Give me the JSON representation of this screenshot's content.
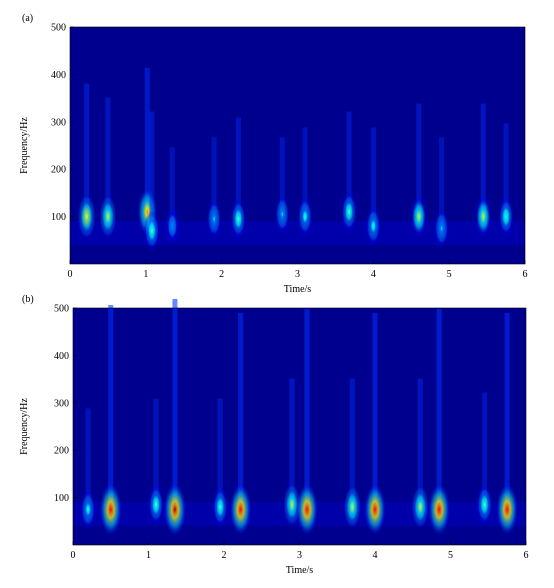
{
  "colors": {
    "background": "#00008f",
    "colormap": [
      "#00008f",
      "#0000ff",
      "#0080ff",
      "#00ffff",
      "#80ff80",
      "#ffff00",
      "#ff8000",
      "#ff0000",
      "#800000"
    ]
  },
  "chart_data": [
    {
      "type": "heatmap",
      "panel_label": "(a)",
      "title": "",
      "xlabel": "Time/s",
      "ylabel": "Frequency/Hz",
      "xlim": [
        0,
        6
      ],
      "ylim": [
        0,
        500
      ],
      "xticks": [
        "0",
        "1",
        "2",
        "3",
        "4",
        "5",
        "6"
      ],
      "yticks": [
        "100",
        "200",
        "300",
        "400",
        "500"
      ],
      "grid": false,
      "blobs": [
        {
          "t": 0.22,
          "f": 100,
          "intensity": 0.62
        },
        {
          "t": 0.5,
          "f": 100,
          "intensity": 0.55
        },
        {
          "t": 1.02,
          "f": 110,
          "intensity": 0.7
        },
        {
          "t": 1.08,
          "f": 70,
          "intensity": 0.48
        },
        {
          "t": 1.35,
          "f": 80,
          "intensity": 0.3
        },
        {
          "t": 1.9,
          "f": 95,
          "intensity": 0.35
        },
        {
          "t": 2.22,
          "f": 95,
          "intensity": 0.45
        },
        {
          "t": 2.8,
          "f": 105,
          "intensity": 0.35
        },
        {
          "t": 3.1,
          "f": 100,
          "intensity": 0.4
        },
        {
          "t": 3.68,
          "f": 110,
          "intensity": 0.48
        },
        {
          "t": 4.0,
          "f": 80,
          "intensity": 0.4
        },
        {
          "t": 4.6,
          "f": 100,
          "intensity": 0.52
        },
        {
          "t": 4.9,
          "f": 75,
          "intensity": 0.35
        },
        {
          "t": 5.45,
          "f": 100,
          "intensity": 0.52
        },
        {
          "t": 5.75,
          "f": 100,
          "intensity": 0.42
        }
      ]
    },
    {
      "type": "heatmap",
      "panel_label": "(b)",
      "title": "",
      "xlabel": "Time/s",
      "ylabel": "Frequency/Hz",
      "xlim": [
        0,
        6
      ],
      "ylim": [
        0,
        500
      ],
      "xticks": [
        "0",
        "1",
        "2",
        "3",
        "4",
        "5",
        "6"
      ],
      "yticks": [
        "100",
        "200",
        "300",
        "400",
        "500"
      ],
      "grid": false,
      "blobs": [
        {
          "t": 0.2,
          "f": 75,
          "intensity": 0.4
        },
        {
          "t": 0.5,
          "f": 75,
          "intensity": 0.92
        },
        {
          "t": 1.1,
          "f": 85,
          "intensity": 0.45
        },
        {
          "t": 1.35,
          "f": 75,
          "intensity": 0.95
        },
        {
          "t": 1.95,
          "f": 80,
          "intensity": 0.45
        },
        {
          "t": 2.22,
          "f": 75,
          "intensity": 0.88
        },
        {
          "t": 2.9,
          "f": 85,
          "intensity": 0.55
        },
        {
          "t": 3.1,
          "f": 75,
          "intensity": 0.9
        },
        {
          "t": 3.7,
          "f": 80,
          "intensity": 0.55
        },
        {
          "t": 4.0,
          "f": 75,
          "intensity": 0.88
        },
        {
          "t": 4.6,
          "f": 80,
          "intensity": 0.55
        },
        {
          "t": 4.85,
          "f": 75,
          "intensity": 0.9
        },
        {
          "t": 5.45,
          "f": 85,
          "intensity": 0.48
        },
        {
          "t": 5.75,
          "f": 75,
          "intensity": 0.88
        }
      ]
    }
  ]
}
